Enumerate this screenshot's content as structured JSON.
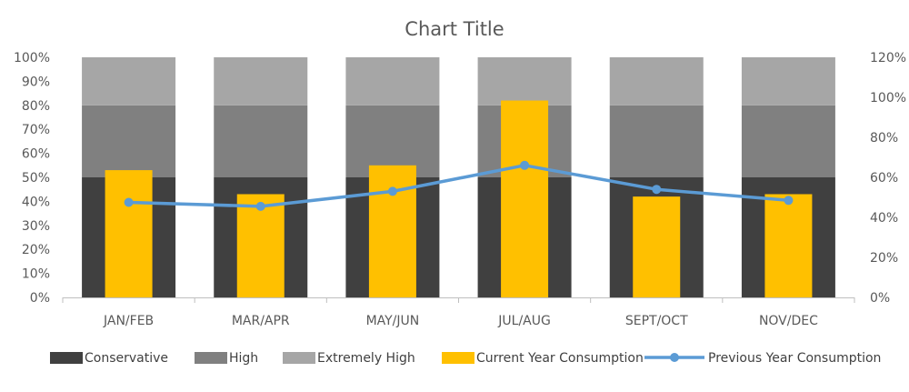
{
  "chart_data": {
    "type": "bar",
    "title": "Chart Title",
    "categories": [
      "JAN/FEB",
      "MAR/APR",
      "MAY/JUN",
      "JUL/AUG",
      "SEPT/OCT",
      "NOV/DEC"
    ],
    "ylim_left": [
      0,
      100
    ],
    "yticks_left": [
      "0%",
      "10%",
      "20%",
      "30%",
      "40%",
      "50%",
      "60%",
      "70%",
      "80%",
      "90%",
      "100%"
    ],
    "ylim_right": [
      0,
      120
    ],
    "yticks_right": [
      "0%",
      "20%",
      "40%",
      "60%",
      "80%",
      "100%",
      "120%"
    ],
    "stacked_series": [
      {
        "name": "Conservative",
        "values": [
          50,
          50,
          50,
          50,
          50,
          50
        ],
        "color": "#404040"
      },
      {
        "name": "High",
        "values": [
          30,
          30,
          30,
          30,
          30,
          30
        ],
        "color": "#808080"
      },
      {
        "name": "Extremely High",
        "values": [
          20,
          20,
          20,
          20,
          20,
          20
        ],
        "color": "#a6a6a6"
      }
    ],
    "bar_series": {
      "name": "Current Year Consumption",
      "axis": "left",
      "values": [
        53,
        43,
        55,
        82,
        42,
        43
      ],
      "color": "#ffc000"
    },
    "line_series": {
      "name": "Previous Year Consumption",
      "axis": "right",
      "values": [
        47.5,
        45.5,
        53,
        66,
        54,
        48.5
      ],
      "color": "#5b9bd5"
    },
    "legend_position": "bottom",
    "grid": false
  }
}
